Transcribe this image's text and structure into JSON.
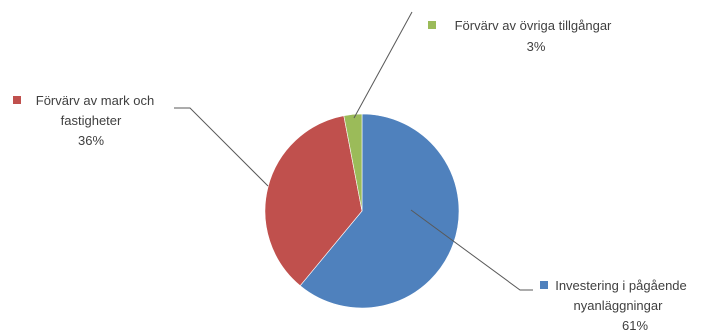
{
  "chart_data": {
    "type": "pie",
    "slices": [
      {
        "label": [
          "Investering i pågående",
          "nyanläggningar"
        ],
        "value": 61,
        "value_label": "61%",
        "color": "#4f81bd"
      },
      {
        "label": [
          "Förvärv av mark och",
          "fastigheter"
        ],
        "value": 36,
        "value_label": "36%",
        "color": "#c0504d"
      },
      {
        "label": [
          "Förvärv av övriga tillgångar"
        ],
        "value": 3,
        "value_label": "3%",
        "color": "#9bbb59"
      }
    ],
    "start_angle_deg": 0,
    "direction": "clockwise",
    "legend": "none",
    "data_labels": "outside with leader lines"
  }
}
